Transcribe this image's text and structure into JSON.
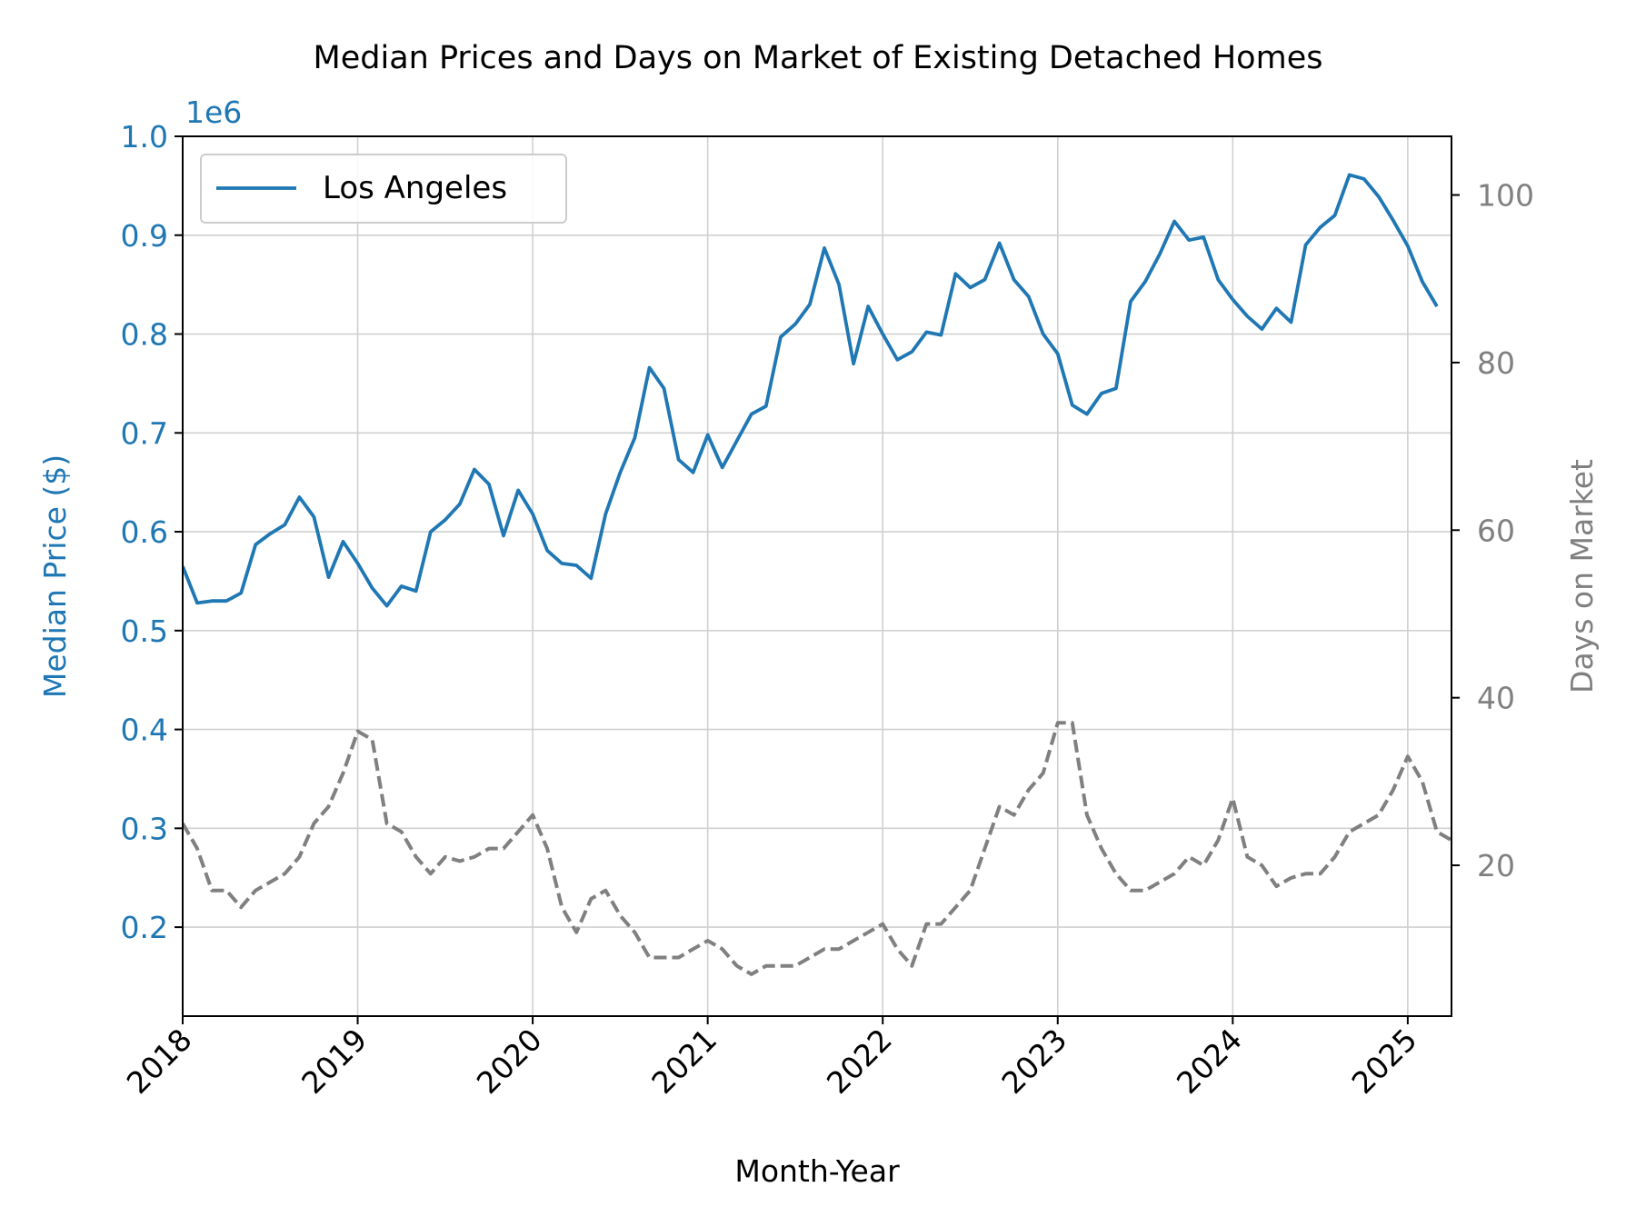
{
  "chart_data": {
    "type": "line",
    "title": "Median Prices and Days on Market of Existing Detached Homes",
    "xlabel": "Month-Year",
    "ylabel_left": "Median Price ($)",
    "ylabel_right": "Days on Market",
    "y_left_offset_label": "1e6",
    "x_range": [
      "2018-01",
      "2025-04"
    ],
    "x_ticks": [
      "2018",
      "2019",
      "2020",
      "2021",
      "2022",
      "2023",
      "2024",
      "2025"
    ],
    "y_left_range": [
      0.11,
      1.0
    ],
    "y_left_ticks": [
      "0.2",
      "0.3",
      "0.4",
      "0.5",
      "0.6",
      "0.7",
      "0.8",
      "0.9",
      "1.0"
    ],
    "y_right_range": [
      2,
      107
    ],
    "y_right_ticks": [
      "20",
      "40",
      "60",
      "80",
      "100"
    ],
    "grid": true,
    "legend": {
      "position": "top-left",
      "entries": [
        "Los Angeles"
      ]
    },
    "colors": {
      "price": "#1f77b4",
      "days": "#808080",
      "grid": "#d0d0d0"
    },
    "series": [
      {
        "name": "Los Angeles",
        "axis": "left",
        "style": "solid",
        "start_month": "2018-01",
        "values": [
          0.565,
          0.528,
          0.53,
          0.53,
          0.538,
          0.587,
          0.598,
          0.607,
          0.635,
          0.615,
          0.554,
          0.59,
          0.568,
          0.543,
          0.525,
          0.545,
          0.54,
          0.6,
          0.612,
          0.628,
          0.663,
          0.648,
          0.596,
          0.642,
          0.618,
          0.581,
          0.568,
          0.566,
          0.553,
          0.618,
          0.66,
          0.695,
          0.766,
          0.745,
          0.673,
          0.66,
          0.698,
          0.665,
          0.692,
          0.719,
          0.727,
          0.797,
          0.81,
          0.83,
          0.887,
          0.85,
          0.77,
          0.828,
          0.8,
          0.774,
          0.782,
          0.802,
          0.799,
          0.861,
          0.847,
          0.855,
          0.892,
          0.855,
          0.838,
          0.8,
          0.78,
          0.728,
          0.719,
          0.74,
          0.745,
          0.833,
          0.853,
          0.881,
          0.914,
          0.895,
          0.898,
          0.855,
          0.835,
          0.818,
          0.805,
          0.826,
          0.812,
          0.89,
          0.908,
          0.92,
          0.961,
          0.957,
          0.939,
          0.915,
          0.889,
          0.853,
          0.828
        ]
      },
      {
        "axis": "right",
        "style": "dashed",
        "start_month": "2018-01",
        "values": [
          25,
          22,
          17,
          17,
          15,
          17,
          18,
          19,
          21,
          25,
          27,
          31,
          36,
          35,
          25,
          24,
          21,
          19,
          21,
          20.5,
          21,
          22,
          22,
          24,
          26,
          22,
          15,
          12,
          16,
          17,
          14,
          12,
          9,
          9,
          9,
          10,
          11,
          10,
          8,
          7,
          8,
          8,
          8,
          9,
          10,
          10,
          11,
          12,
          13,
          10,
          8,
          13,
          13,
          15,
          17,
          22,
          27,
          26,
          29,
          31,
          37,
          37,
          26,
          22,
          19,
          17,
          17,
          18,
          19,
          21,
          20,
          23,
          28,
          21,
          20,
          17.5,
          18.5,
          19,
          19,
          21,
          24,
          25,
          26,
          29,
          33,
          30,
          24,
          23
        ]
      }
    ]
  }
}
